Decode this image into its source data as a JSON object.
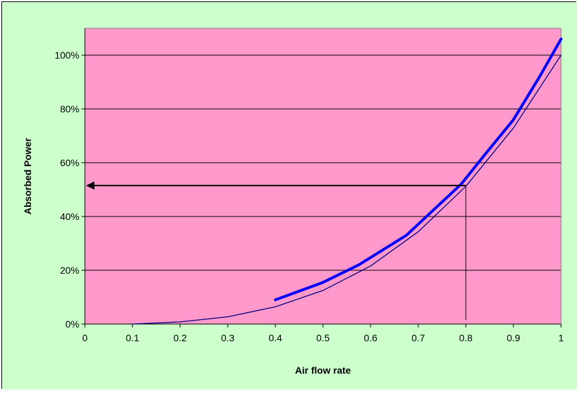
{
  "chart_data": {
    "type": "line",
    "title": "",
    "xlabel": "Air flow rate",
    "ylabel": "Absorbed Power",
    "xlim": [
      0,
      1
    ],
    "ylim": [
      0,
      1.1
    ],
    "x_ticks": [
      0,
      0.1,
      0.2,
      0.3,
      0.4,
      0.5,
      0.6,
      0.7,
      0.8,
      0.9,
      1
    ],
    "x_tick_labels": [
      "0",
      "0.1",
      "0.2",
      "0.3",
      "0.4",
      "0.5",
      "0.6",
      "0.7",
      "0.8",
      "0.9",
      "1"
    ],
    "y_ticks": [
      0,
      0.2,
      0.4,
      0.6,
      0.8,
      1.0
    ],
    "y_tick_labels": [
      "0%",
      "20%",
      "40%",
      "60%",
      "80%",
      "100%"
    ],
    "grid": "horizontal",
    "legend": "none",
    "series": [
      {
        "style": "thin",
        "x": [
          0.1,
          0.2,
          0.3,
          0.4,
          0.5,
          0.6,
          0.7,
          0.8,
          0.9,
          1.0
        ],
        "y": [
          0.0,
          0.008,
          0.027,
          0.064,
          0.125,
          0.216,
          0.343,
          0.512,
          0.729,
          1.0
        ]
      },
      {
        "style": "thick",
        "x": [
          0.4,
          0.5,
          0.575,
          0.675,
          0.79,
          0.84,
          0.9,
          0.955,
          1.0
        ],
        "y": [
          0.09,
          0.155,
          0.22,
          0.33,
          0.52,
          0.63,
          0.76,
          0.92,
          1.06
        ]
      }
    ],
    "annotation": {
      "from_x": 0.8,
      "to_y": 0.515
    }
  },
  "colors": {
    "page_background": "#ccffcc",
    "plot_background": "#ff99cc",
    "thin_line": "#000080",
    "thick_line": "#0000ff",
    "grid": "#000000"
  }
}
